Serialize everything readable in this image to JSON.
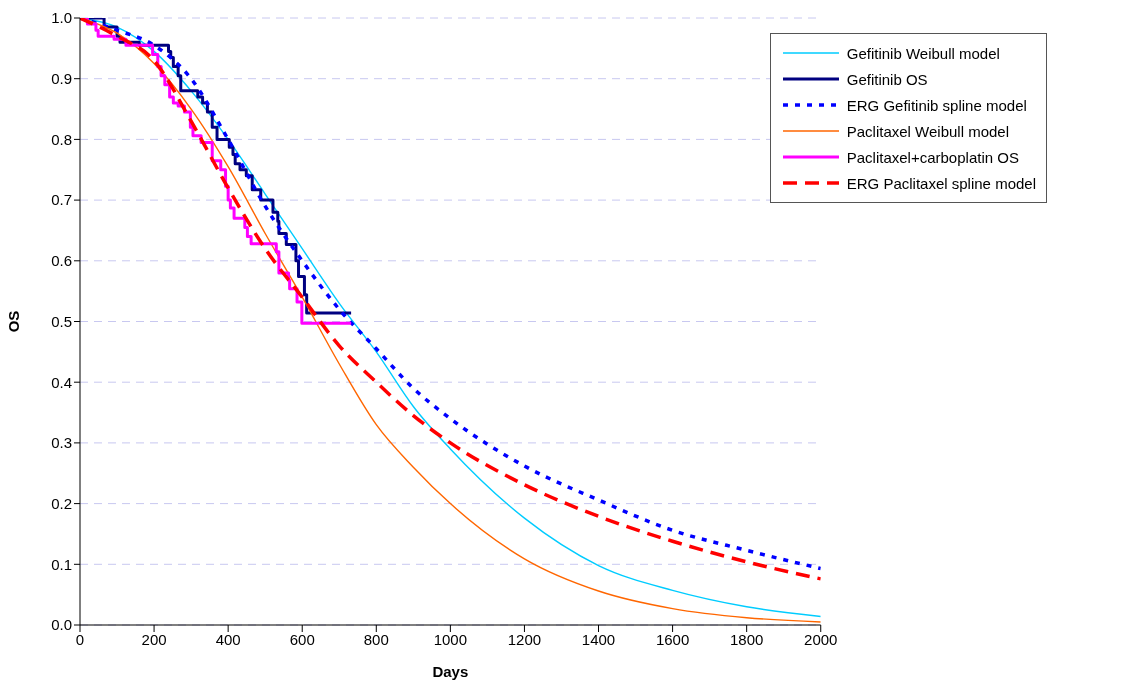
{
  "chart_data": {
    "type": "line",
    "xlabel": "Days",
    "ylabel": "OS",
    "xlim": [
      0,
      2000
    ],
    "xticks": [
      0,
      200,
      400,
      600,
      800,
      1000,
      1200,
      1400,
      1600,
      1800,
      2000
    ],
    "ylim": [
      0,
      1
    ],
    "yticks": [
      {
        "value": 0,
        "label": "0.0"
      },
      {
        "value": 0.1,
        "label": "0.1"
      },
      {
        "value": 0.2,
        "label": "0.2"
      },
      {
        "value": 0.3,
        "label": "0.3"
      },
      {
        "value": 0.4,
        "label": "0.4"
      },
      {
        "value": 0.5,
        "label": "0.5"
      },
      {
        "value": 0.6,
        "label": "0.6"
      },
      {
        "value": 0.7,
        "label": "0.7"
      },
      {
        "value": 0.8,
        "label": "0.8"
      },
      {
        "value": 0.9,
        "label": "0.9"
      },
      {
        "value": 1,
        "label": "1.0"
      }
    ],
    "grid": "y",
    "legend": "top right",
    "marker": "none",
    "series": [
      {
        "name": "Gefitinib Weibull model",
        "color": "#00ccff",
        "line_style": "solid",
        "x": [
          0,
          100,
          200,
          300,
          400,
          500,
          600,
          700,
          800,
          900,
          1000,
          1200,
          1400,
          1600,
          1800,
          2000
        ],
        "values": [
          1,
          0.985,
          0.945,
          0.88,
          0.8,
          0.71,
          0.62,
          0.53,
          0.45,
          0.36,
          0.29,
          0.176,
          0.098,
          0.057,
          0.03,
          0.014
        ]
      },
      {
        "name": "Gefitinib OS",
        "color": "#000080",
        "type": "step",
        "line_style": "solid",
        "x": [
          0,
          65,
          100,
          108,
          160,
          239,
          245,
          252,
          265,
          272,
          318,
          331,
          344,
          357,
          370,
          403,
          413,
          419,
          432,
          449,
          465,
          488,
          521,
          534,
          537,
          557,
          583,
          590,
          606,
          612,
          732
        ],
        "values": [
          1,
          0.985,
          0.97,
          0.96,
          0.955,
          0.945,
          0.935,
          0.92,
          0.905,
          0.88,
          0.87,
          0.86,
          0.845,
          0.82,
          0.8,
          0.787,
          0.775,
          0.76,
          0.75,
          0.74,
          0.717,
          0.7,
          0.68,
          0.665,
          0.645,
          0.627,
          0.6,
          0.574,
          0.544,
          0.514,
          0.514
        ]
      },
      {
        "name": "ERG Gefitinib spline model",
        "color": "#0000ff",
        "line_style": "dotted",
        "x": [
          0,
          100,
          200,
          300,
          400,
          500,
          600,
          700,
          800,
          900,
          1000,
          1200,
          1400,
          1600,
          1800,
          2000
        ],
        "values": [
          1,
          0.98,
          0.955,
          0.9,
          0.8,
          0.69,
          0.6,
          0.52,
          0.455,
          0.39,
          0.34,
          0.262,
          0.206,
          0.156,
          0.123,
          0.093
        ]
      },
      {
        "name": "Paclitaxel Weibull model",
        "color": "#ff6600",
        "line_style": "solid",
        "x": [
          0,
          100,
          200,
          300,
          400,
          500,
          600,
          700,
          800,
          900,
          1000,
          1200,
          1400,
          1600,
          1800,
          2000
        ],
        "values": [
          1,
          0.975,
          0.925,
          0.85,
          0.755,
          0.645,
          0.54,
          0.43,
          0.33,
          0.26,
          0.2,
          0.109,
          0.056,
          0.027,
          0.012,
          0.005
        ]
      },
      {
        "name": "Paclitaxel+carboplatin OS",
        "color": "#ff00ff",
        "type": "step",
        "line_style": "solid",
        "x": [
          0,
          20,
          43,
          49,
          92,
          124,
          196,
          210,
          219,
          229,
          242,
          252,
          265,
          282,
          298,
          305,
          327,
          357,
          380,
          393,
          400,
          406,
          416,
          445,
          452,
          462,
          530,
          537,
          563,
          566,
          586,
          599,
          732
        ],
        "values": [
          1,
          0.99,
          0.98,
          0.97,
          0.965,
          0.955,
          0.94,
          0.92,
          0.905,
          0.89,
          0.87,
          0.86,
          0.855,
          0.845,
          0.82,
          0.806,
          0.795,
          0.765,
          0.75,
          0.723,
          0.7,
          0.687,
          0.67,
          0.655,
          0.64,
          0.628,
          0.615,
          0.58,
          0.568,
          0.554,
          0.532,
          0.497,
          0.497
        ]
      },
      {
        "name": "ERG Paclitaxel spline model",
        "color": "#ff0000",
        "line_style": "dashed",
        "x": [
          0,
          100,
          200,
          300,
          400,
          500,
          600,
          700,
          800,
          900,
          1000,
          1200,
          1400,
          1600,
          1800,
          2000
        ],
        "values": [
          1,
          0.97,
          0.93,
          0.83,
          0.72,
          0.62,
          0.54,
          0.46,
          0.4,
          0.345,
          0.3,
          0.231,
          0.179,
          0.138,
          0.104,
          0.076
        ]
      }
    ]
  }
}
